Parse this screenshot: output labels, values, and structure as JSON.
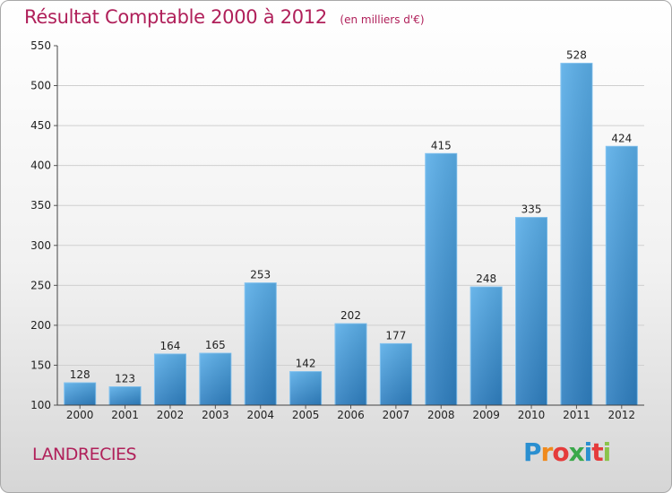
{
  "header": {
    "title": "Résultat Comptable 2000 à 2012",
    "subtitle": "(en milliers d'€)"
  },
  "footer": {
    "commune": "LANDRECIES",
    "logo_letters": [
      "P",
      "r",
      "o",
      "x",
      "i",
      "t",
      "i"
    ],
    "logo_colors": [
      "#2a8fd0",
      "#f08a1c",
      "#e53b3b",
      "#3aa84a",
      "#2a8fd0",
      "#e53b3b",
      "#8bc34a"
    ]
  },
  "chart_data": {
    "type": "bar",
    "title": "Résultat Comptable 2000 à 2012",
    "subtitle": "(en milliers d'€)",
    "xlabel": "",
    "ylabel": "",
    "categories": [
      "2000",
      "2001",
      "2002",
      "2003",
      "2004",
      "2005",
      "2006",
      "2007",
      "2008",
      "2009",
      "2010",
      "2011",
      "2012"
    ],
    "values": [
      128,
      123,
      164,
      165,
      253,
      142,
      202,
      177,
      415,
      248,
      335,
      528,
      424
    ],
    "ylim": [
      100,
      550
    ],
    "yticks": [
      "100",
      "150",
      "200",
      "250",
      "300",
      "350",
      "400",
      "450",
      "500",
      "550"
    ],
    "grid": "horizontal",
    "bar_color": "#3d94d6",
    "legend": "none"
  }
}
